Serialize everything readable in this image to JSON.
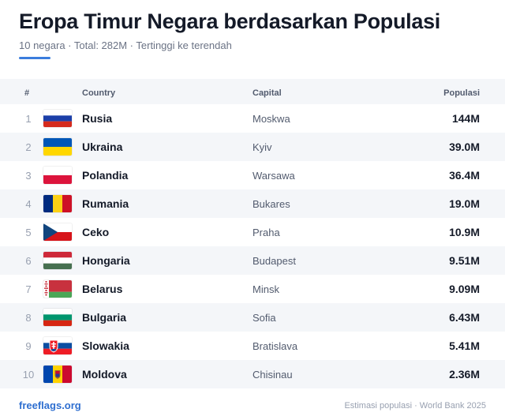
{
  "header": {
    "title": "Eropa Timur Negara berdasarkan Populasi",
    "subtitle": "10 negara · Total: 282M · Tertinggi ke terendah"
  },
  "table": {
    "columns": {
      "rank": "#",
      "country": "Country",
      "capital": "Capital",
      "population": "Populasi"
    },
    "rows": [
      {
        "rank": "1",
        "country": "Rusia",
        "capital": "Moskwa",
        "population": "144M",
        "flag": "russia-flag-icon"
      },
      {
        "rank": "2",
        "country": "Ukraina",
        "capital": "Kyiv",
        "population": "39.0M",
        "flag": "ukraine-flag-icon"
      },
      {
        "rank": "3",
        "country": "Polandia",
        "capital": "Warsawa",
        "population": "36.4M",
        "flag": "poland-flag-icon"
      },
      {
        "rank": "4",
        "country": "Rumania",
        "capital": "Bukares",
        "population": "19.0M",
        "flag": "romania-flag-icon"
      },
      {
        "rank": "5",
        "country": "Ceko",
        "capital": "Praha",
        "population": "10.9M",
        "flag": "czechia-flag-icon"
      },
      {
        "rank": "6",
        "country": "Hongaria",
        "capital": "Budapest",
        "population": "9.51M",
        "flag": "hungary-flag-icon"
      },
      {
        "rank": "7",
        "country": "Belarus",
        "capital": "Minsk",
        "population": "9.09M",
        "flag": "belarus-flag-icon"
      },
      {
        "rank": "8",
        "country": "Bulgaria",
        "capital": "Sofia",
        "population": "6.43M",
        "flag": "bulgaria-flag-icon"
      },
      {
        "rank": "9",
        "country": "Slowakia",
        "capital": "Bratislava",
        "population": "5.41M",
        "flag": "slovakia-flag-icon"
      },
      {
        "rank": "10",
        "country": "Moldova",
        "capital": "Chisinau",
        "population": "2.36M",
        "flag": "moldova-flag-icon"
      }
    ]
  },
  "footer": {
    "source_link": "freeflags.org",
    "note": "Estimasi populasi · World Bank 2025"
  },
  "colors": {
    "accent": "#3b7ddd",
    "link": "#2f6fd0",
    "row_alt": "#f4f6f9"
  }
}
